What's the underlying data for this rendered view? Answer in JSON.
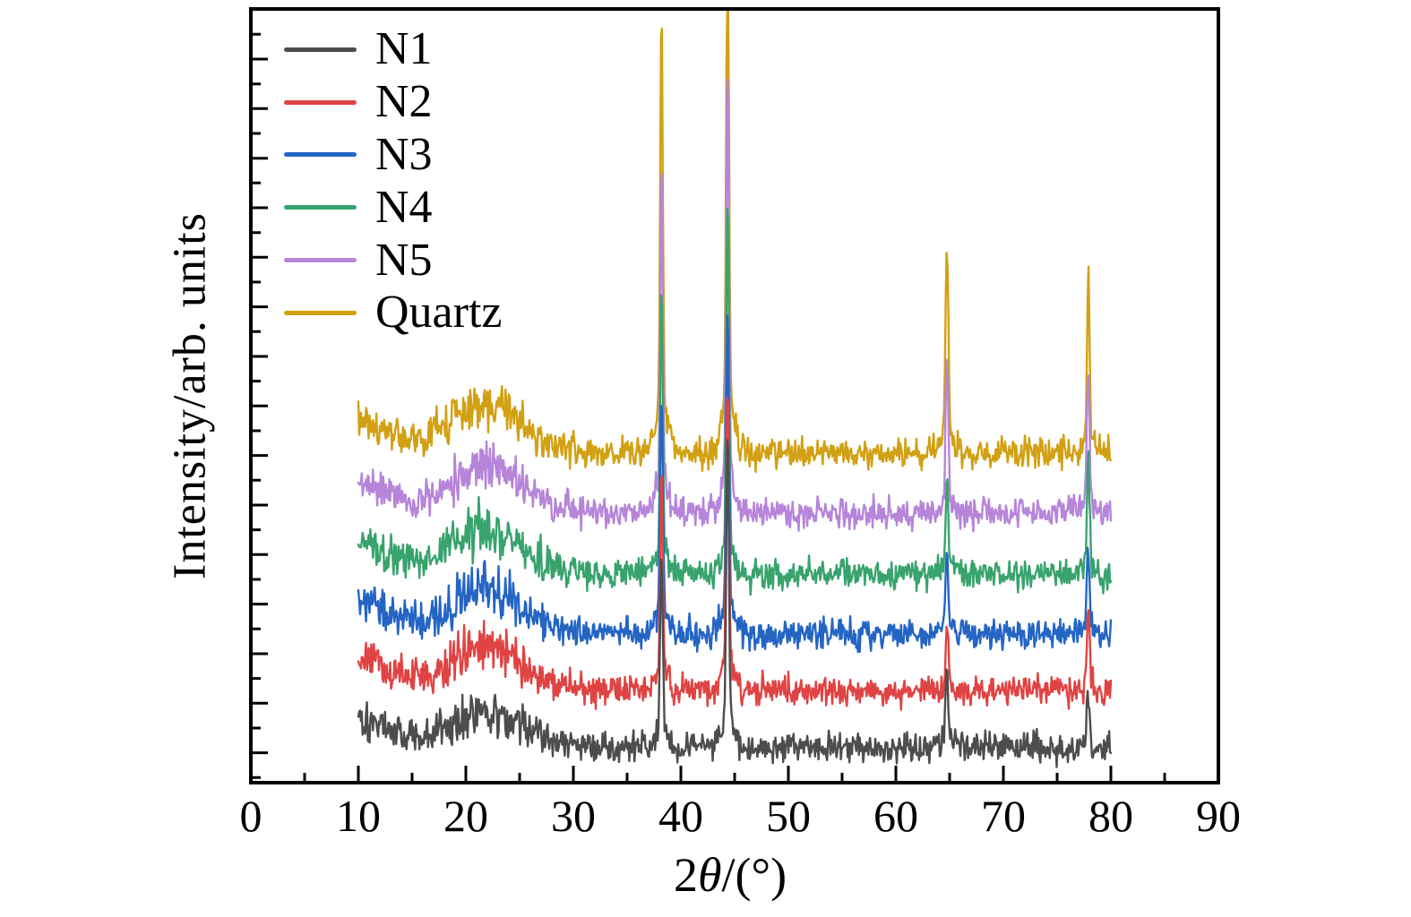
{
  "figure": {
    "background": "#ffffff",
    "frame_color": "#000000"
  },
  "chart_data": {
    "type": "line",
    "title": "",
    "x_axis": {
      "label_parts": {
        "prefix": "2",
        "theta": "θ",
        "suffix": "/(°)"
      },
      "label_plain": "2θ/(°)",
      "min": 0,
      "max": 90,
      "tick_values": [
        0,
        10,
        20,
        30,
        40,
        50,
        60,
        70,
        80,
        90
      ],
      "tick_labels": [
        "0",
        "10",
        "20",
        "30",
        "40",
        "50",
        "60",
        "70",
        "80",
        "90"
      ],
      "minor_tick_values": [
        5,
        15,
        25,
        35,
        45,
        55,
        65,
        75,
        85
      ]
    },
    "y_axis": {
      "label": "Intensity/arb. units",
      "tick_labels": [],
      "note": "arbitrary units, ticks unlabeled",
      "first_major_y": 66,
      "major_step_y": 55.33,
      "major_tick_count": 15,
      "minor_tick_count": 16
    },
    "x_data_range": [
      10,
      80
    ],
    "x_step": 0.08,
    "peaks_2theta": [
      38.2,
      44.35,
      64.75,
      77.9
    ],
    "peak_shape": {
      "core_sigma": 0.17,
      "base_frac": 0.11,
      "base_sigma": 0.8
    },
    "hump": {
      "center": 21.8,
      "sigma": 4.8
    },
    "left_bump": {
      "center": 9.5,
      "sigma": 4.2,
      "height_u": 0.042
    },
    "noise_amplitude_u": 0.019,
    "draw_order": "reverse of legend (Quartz bottom layer, N1 top layer)",
    "series": [
      {
        "name": "N1",
        "color": "#4d4d4d",
        "baseline_u": 0.045,
        "hump_height_u": 0.05,
        "peak_heights_u": [
          0.23,
          0.37,
          0.105,
          0.068
        ],
        "seed": 101
      },
      {
        "name": "N2",
        "color": "#e04343",
        "baseline_u": 0.12,
        "hump_height_u": 0.056,
        "peak_heights_u": [
          0.25,
          0.36,
          0.075,
          0.092
        ],
        "seed": 202
      },
      {
        "name": "N3",
        "color": "#2465c4",
        "baseline_u": 0.193,
        "hump_height_u": 0.054,
        "peak_heights_u": [
          0.28,
          0.38,
          0.092,
          0.1
        ],
        "seed": 303
      },
      {
        "name": "N4",
        "color": "#38a36d",
        "baseline_u": 0.269,
        "hump_height_u": 0.058,
        "peak_heights_u": [
          0.33,
          0.44,
          0.105,
          0.14
        ],
        "seed": 404
      },
      {
        "name": "N5",
        "color": "#b685da",
        "baseline_u": 0.348,
        "hump_height_u": 0.06,
        "peak_heights_u": [
          0.4,
          0.52,
          0.185,
          0.175
        ],
        "seed": 505
      },
      {
        "name": "Quartz",
        "color": "#d2a013",
        "baseline_u": 0.427,
        "hump_height_u": 0.064,
        "peak_heights_u": [
          0.507,
          0.64,
          0.257,
          0.205
        ],
        "seed": 606
      }
    ]
  }
}
